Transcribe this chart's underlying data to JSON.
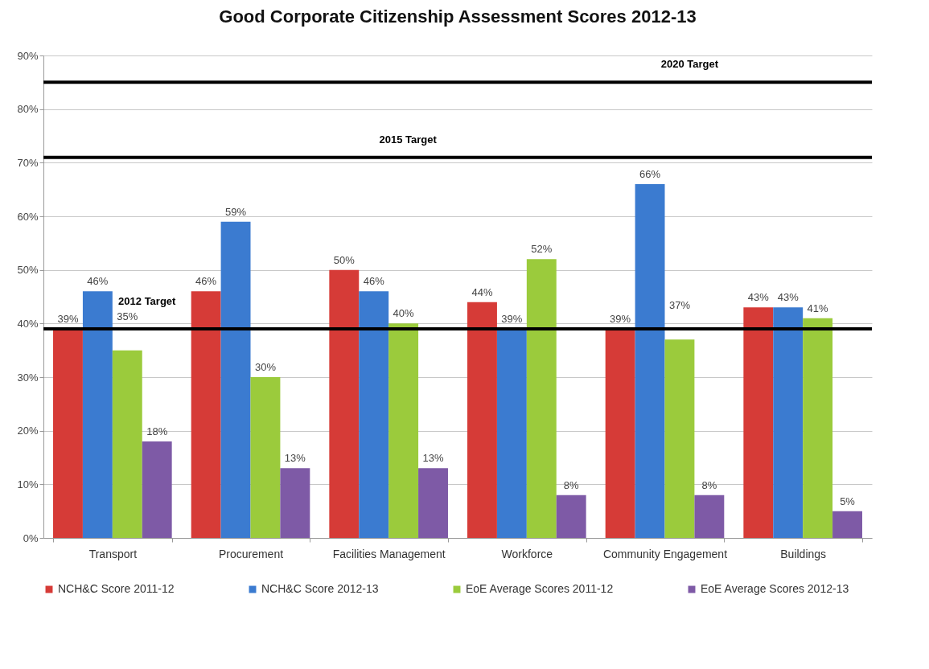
{
  "chart_data": {
    "type": "bar",
    "title": "Good Corporate Citizenship Assessment Scores 2012-13",
    "categories": [
      "Transport",
      "Procurement",
      "Facilities Management",
      "Workforce",
      "Community Engagement",
      "Buildings"
    ],
    "series": [
      {
        "name": "NCH&C Score 2011-12",
        "color": "#d63b37",
        "values": [
          39,
          46,
          50,
          44,
          39,
          43
        ]
      },
      {
        "name": "NCH&C Score 2012-13",
        "color": "#3b7bd0",
        "values": [
          46,
          59,
          46,
          39,
          66,
          43
        ]
      },
      {
        "name": "EoE Average Scores 2011-12",
        "color": "#9bcb3c",
        "values": [
          35,
          30,
          40,
          52,
          37,
          41
        ]
      },
      {
        "name": "EoE Average Scores 2012-13",
        "color": "#7e5aa6",
        "values": [
          18,
          13,
          13,
          8,
          8,
          5
        ]
      }
    ],
    "ylim": [
      0,
      90
    ],
    "yticks": [
      {
        "value": 0,
        "label": "0%"
      },
      {
        "value": 10,
        "label": "10%"
      },
      {
        "value": 20,
        "label": "20%"
      },
      {
        "value": 30,
        "label": "30%"
      },
      {
        "value": 40,
        "label": "40%"
      },
      {
        "value": 50,
        "label": "50%"
      },
      {
        "value": 60,
        "label": "60%"
      },
      {
        "value": 70,
        "label": "70%"
      },
      {
        "value": 80,
        "label": "80%"
      },
      {
        "value": 90,
        "label": "90%"
      }
    ],
    "value_labels": [
      [
        "39%",
        "46%",
        "50%",
        "44%",
        "39%",
        "43%"
      ],
      [
        "46%",
        "59%",
        "46%",
        "39%",
        "66%",
        "43%"
      ],
      [
        "35%",
        "30%",
        "40%",
        "52%",
        "37%",
        "41%"
      ],
      [
        "18%",
        "13%",
        "13%",
        "8%",
        "8%",
        "5%"
      ]
    ],
    "ref_lines": [
      {
        "axis": "y",
        "value": 85,
        "label": "2020 Target",
        "color": "#000000"
      },
      {
        "axis": "y",
        "value": 71,
        "label": "2015 Target",
        "color": "#000000"
      },
      {
        "axis": "y",
        "value": 39,
        "label": "2012 Target",
        "color": "#000000"
      }
    ],
    "grid": "y",
    "legend": "bottom"
  }
}
